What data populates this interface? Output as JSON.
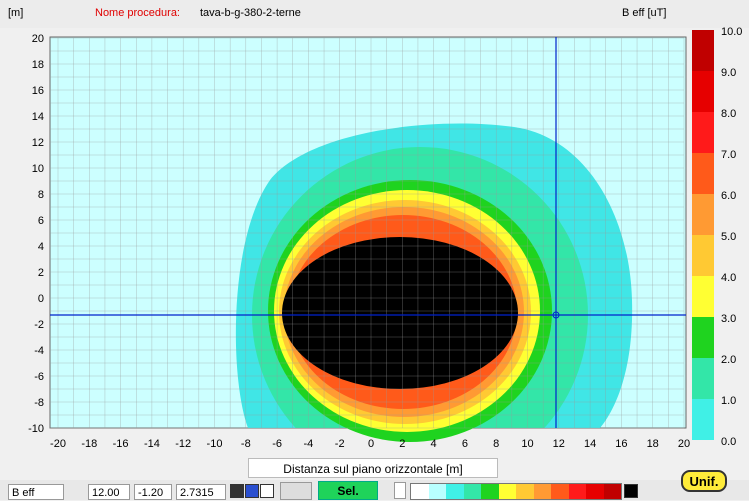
{
  "header": {
    "unit_m": "[m]",
    "proc_label": "Nome procedura:",
    "proc_name": "tava-b-g-380-2-terne",
    "legend_title": "B eff [uT]"
  },
  "plot": {
    "xlabel": "Distanza sul piano orizzontale [m]",
    "xticks": [
      "-20",
      "-18",
      "-16",
      "-14",
      "-12",
      "-10",
      "-8",
      "-6",
      "-4",
      "-2",
      "0",
      "2",
      "4",
      "6",
      "8",
      "10",
      "12",
      "14",
      "16",
      "18",
      "20"
    ],
    "yticks": [
      "20",
      "18",
      "16",
      "14",
      "12",
      "10",
      "8",
      "6",
      "4",
      "2",
      "0",
      "-2",
      "-4",
      "-6",
      "-8",
      "-10"
    ],
    "cursor": {
      "x": 12,
      "y": -1.2
    }
  },
  "legend": {
    "labels": [
      "10.0",
      "9.0",
      "8.0",
      "7.0",
      "6.0",
      "5.0",
      "4.0",
      "3.0",
      "2.0",
      "1.0",
      "0.0"
    ],
    "colors": [
      "#c00000",
      "#e60000",
      "#ff1a1a",
      "#ff5a1a",
      "#ff9a33",
      "#ffc933",
      "#ffff33",
      "#1fd31f",
      "#33e6a8",
      "#40f0e6",
      "#b8ffff"
    ]
  },
  "statusbar": {
    "mode": "B eff",
    "x_val": "12.00",
    "y_val": "-1.20",
    "b_val": "2.7315",
    "sel_label": "Sel.",
    "unif_label": "Unif."
  },
  "contour_colors": {
    "c1": "#40e6e6",
    "c2": "#33e6a8",
    "c3": "#1fd31f",
    "c4": "#ffff33",
    "c5": "#ffc933",
    "c6": "#ff9a33",
    "c7": "#ff5a1a",
    "core": "#000000",
    "bg": "#ccffff"
  }
}
